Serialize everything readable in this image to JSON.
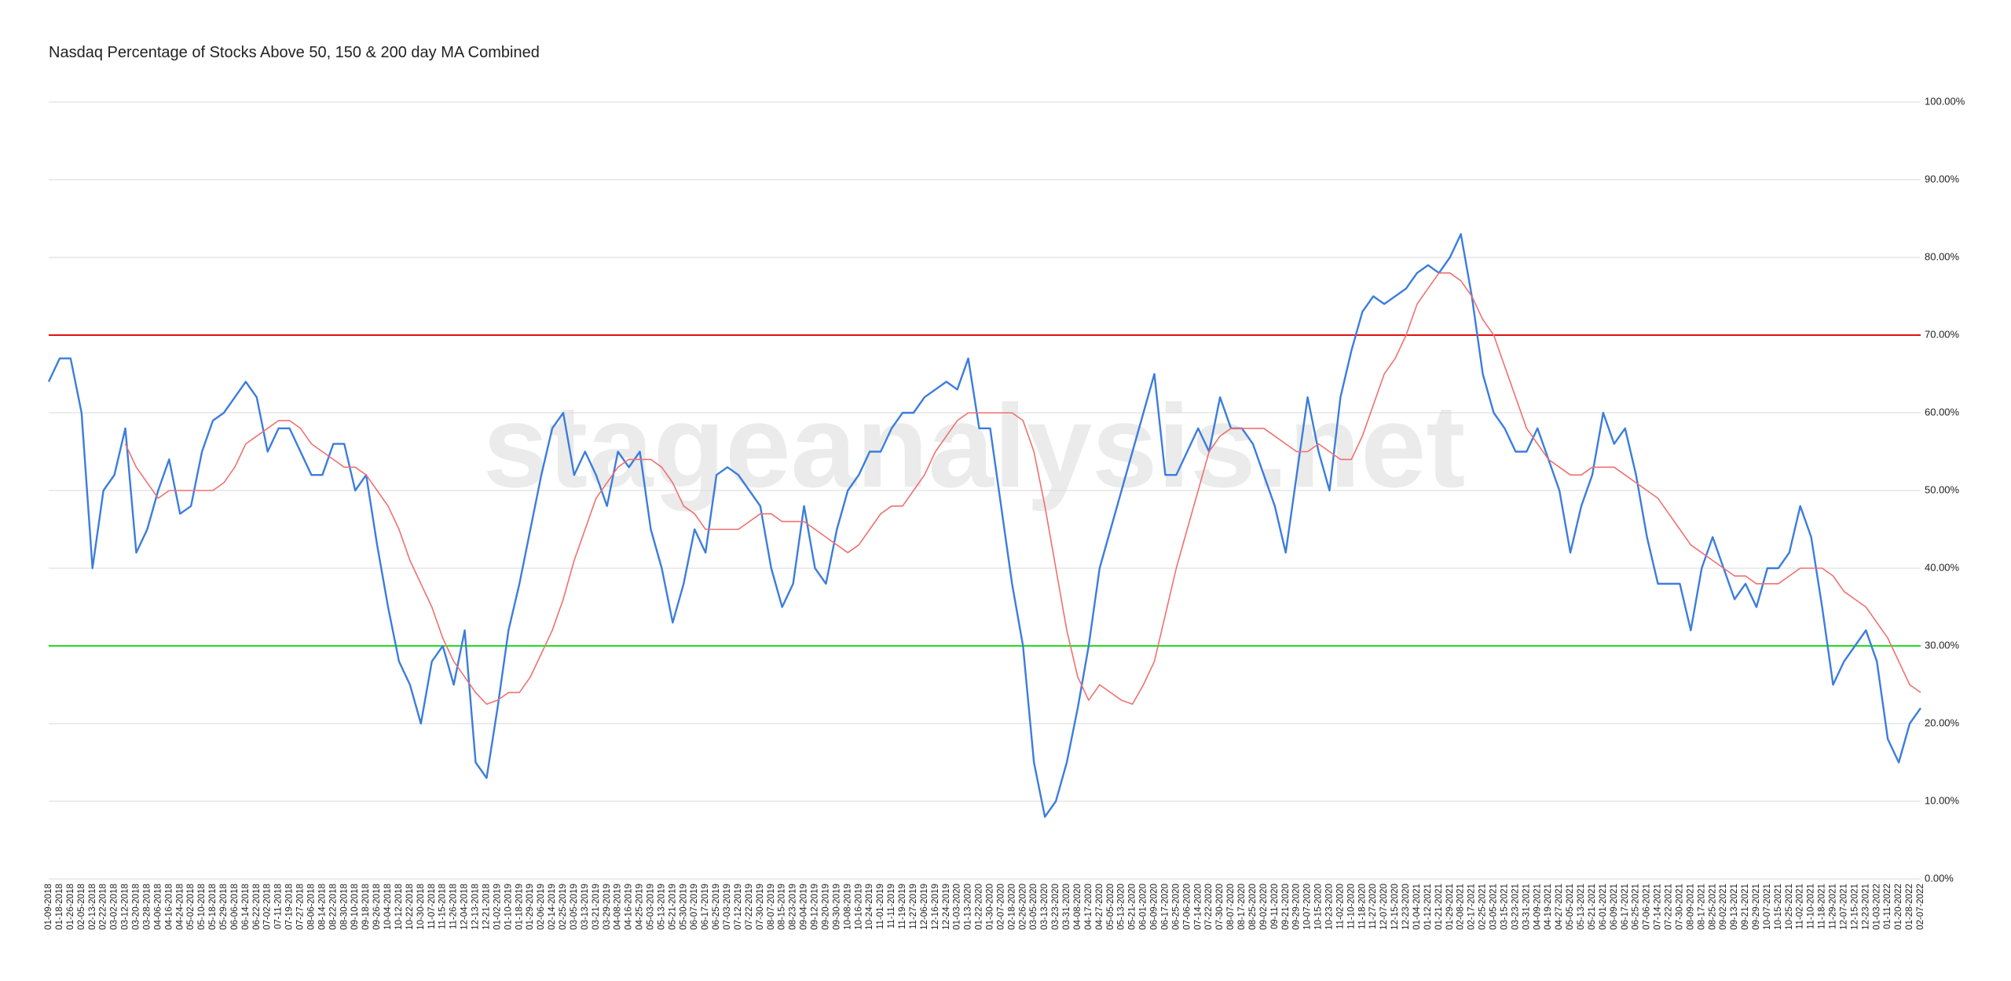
{
  "chart_data": {
    "type": "line",
    "title": "Nasdaq Percentage of Stocks Above 50, 150 & 200 day MA Combined",
    "watermark": "stageanalysis.net",
    "categories": [
      "01-09-2018",
      "01-18-2018",
      "01-26-2018",
      "02-05-2018",
      "02-13-2018",
      "02-22-2018",
      "03-02-2018",
      "03-12-2018",
      "03-20-2018",
      "03-28-2018",
      "04-06-2018",
      "04-16-2018",
      "04-24-2018",
      "05-02-2018",
      "05-10-2018",
      "05-18-2018",
      "05-29-2018",
      "06-06-2018",
      "06-14-2018",
      "06-22-2018",
      "07-02-2018",
      "07-11-2018",
      "07-19-2018",
      "07-27-2018",
      "08-06-2018",
      "08-14-2018",
      "08-22-2018",
      "08-30-2018",
      "09-10-2018",
      "09-18-2018",
      "09-26-2018",
      "10-04-2018",
      "10-12-2018",
      "10-22-2018",
      "10-30-2018",
      "11-07-2018",
      "11-15-2018",
      "11-26-2018",
      "12-04-2018",
      "12-13-2018",
      "12-21-2018",
      "01-02-2019",
      "01-10-2019",
      "01-18-2019",
      "01-29-2019",
      "02-06-2019",
      "02-14-2019",
      "02-25-2019",
      "03-05-2019",
      "03-13-2019",
      "03-21-2019",
      "03-29-2019",
      "04-08-2019",
      "04-16-2019",
      "04-25-2019",
      "05-03-2019",
      "05-13-2019",
      "05-21-2019",
      "05-30-2019",
      "06-07-2019",
      "06-17-2019",
      "06-25-2019",
      "07-03-2019",
      "07-12-2019",
      "07-22-2019",
      "07-30-2019",
      "08-07-2019",
      "08-15-2019",
      "08-23-2019",
      "09-04-2019",
      "09-12-2019",
      "09-20-2019",
      "09-30-2019",
      "10-08-2019",
      "10-16-2019",
      "10-24-2019",
      "11-01-2019",
      "11-11-2019",
      "11-19-2019",
      "11-27-2019",
      "12-06-2019",
      "12-16-2019",
      "12-24-2019",
      "01-03-2020",
      "01-13-2020",
      "01-22-2020",
      "01-30-2020",
      "02-07-2020",
      "02-18-2020",
      "02-26-2020",
      "03-05-2020",
      "03-13-2020",
      "03-23-2020",
      "03-31-2020",
      "04-08-2020",
      "04-17-2020",
      "04-27-2020",
      "05-05-2020",
      "05-13-2020",
      "05-21-2020",
      "06-01-2020",
      "06-09-2020",
      "06-17-2020",
      "06-25-2020",
      "07-06-2020",
      "07-14-2020",
      "07-22-2020",
      "07-30-2020",
      "08-07-2020",
      "08-17-2020",
      "08-25-2020",
      "09-02-2020",
      "09-11-2020",
      "09-21-2020",
      "09-29-2020",
      "10-07-2020",
      "10-15-2020",
      "10-23-2020",
      "11-02-2020",
      "11-10-2020",
      "11-18-2020",
      "11-27-2020",
      "12-07-2020",
      "12-15-2020",
      "12-23-2020",
      "01-04-2021",
      "01-12-2021",
      "01-21-2021",
      "01-29-2021",
      "02-08-2021",
      "02-17-2021",
      "02-25-2021",
      "03-05-2021",
      "03-15-2021",
      "03-23-2021",
      "03-31-2021",
      "04-09-2021",
      "04-19-2021",
      "04-27-2021",
      "05-05-2021",
      "05-13-2021",
      "05-21-2021",
      "06-01-2021",
      "06-09-2021",
      "06-17-2021",
      "06-25-2021",
      "07-06-2021",
      "07-14-2021",
      "07-22-2021",
      "07-30-2021",
      "08-09-2021",
      "08-17-2021",
      "08-25-2021",
      "09-02-2021",
      "09-13-2021",
      "09-21-2021",
      "09-29-2021",
      "10-07-2021",
      "10-15-2021",
      "10-25-2021",
      "11-02-2021",
      "11-10-2021",
      "11-18-2021",
      "11-29-2021",
      "12-07-2021",
      "12-15-2021",
      "12-23-2021",
      "01-03-2022",
      "01-11-2022",
      "01-20-2022",
      "01-28-2022",
      "02-07-2022"
    ],
    "series": [
      {
        "color": "#3b7ddd",
        "values": [
          64,
          67,
          67,
          60,
          40,
          50,
          52,
          58,
          42,
          45,
          50,
          54,
          47,
          48,
          55,
          59,
          60,
          62,
          64,
          62,
          55,
          58,
          58,
          55,
          52,
          52,
          56,
          56,
          50,
          52,
          43,
          35,
          28,
          25,
          20,
          28,
          30,
          25,
          32,
          15,
          13,
          22,
          32,
          38,
          45,
          52,
          58,
          60,
          52,
          55,
          52,
          48,
          55,
          53,
          55,
          45,
          40,
          33,
          38,
          45,
          42,
          52,
          53,
          52,
          50,
          48,
          40,
          35,
          38,
          48,
          40,
          38,
          45,
          50,
          52,
          55,
          55,
          58,
          60,
          60,
          62,
          63,
          64,
          63,
          67,
          58,
          58,
          48,
          38,
          30,
          15,
          8,
          10,
          15,
          22,
          30,
          40,
          45,
          50,
          55,
          60,
          65,
          52,
          52,
          55,
          58,
          55,
          62,
          58,
          58,
          56,
          52,
          48,
          42,
          52,
          62,
          55,
          50,
          62,
          68,
          73,
          75,
          74,
          75,
          76,
          78,
          79,
          78,
          80,
          83,
          75,
          65,
          60,
          58,
          55,
          55,
          58,
          54,
          50,
          42,
          48,
          52,
          60,
          56,
          58,
          52,
          44,
          38,
          38,
          38,
          32,
          40,
          44,
          40,
          36,
          38,
          35,
          40,
          40,
          42,
          48,
          44,
          35,
          25,
          28,
          30,
          32,
          28,
          18,
          15,
          20,
          22
        ]
      },
      {
        "color": "#f07070",
        "values": [
          null,
          null,
          null,
          null,
          null,
          null,
          null,
          56,
          53,
          51,
          49,
          50,
          50,
          50,
          50,
          50,
          51,
          53,
          56,
          57,
          58,
          59,
          59,
          58,
          56,
          55,
          54,
          53,
          53,
          52,
          50,
          48,
          45,
          41,
          38,
          35,
          31,
          28,
          26,
          24,
          22.5,
          23,
          24,
          24,
          26,
          29,
          32,
          36,
          41,
          45,
          49,
          51,
          53,
          54,
          54,
          54,
          53,
          51,
          48,
          47,
          45,
          45,
          45,
          45,
          46,
          47,
          47,
          46,
          46,
          46,
          45,
          44,
          43,
          42,
          43,
          45,
          47,
          48,
          48,
          50,
          52,
          55,
          57,
          59,
          60,
          60,
          60,
          60,
          60,
          59,
          55,
          48,
          40,
          32,
          26,
          23,
          25,
          24,
          23,
          22.5,
          25,
          28,
          34,
          40,
          45,
          50,
          55,
          57,
          58,
          58,
          58,
          58,
          57,
          56,
          55,
          55,
          56,
          55,
          54,
          54,
          57,
          61,
          65,
          67,
          70,
          74,
          76,
          78,
          78,
          77,
          75,
          72,
          70,
          66,
          62,
          58,
          56,
          54,
          53,
          52,
          52,
          53,
          53,
          53,
          52,
          51,
          50,
          49,
          47,
          45,
          43,
          42,
          41,
          40,
          39,
          39,
          38,
          38,
          38,
          39,
          40,
          40,
          40,
          39,
          37,
          36,
          35,
          33,
          31,
          28,
          25,
          24
        ]
      }
    ],
    "reference_lines": [
      {
        "value": 70,
        "color": "#e01010"
      },
      {
        "value": 30,
        "color": "#22dd22"
      }
    ],
    "ylim": [
      0,
      100
    ],
    "yticks": [
      {
        "value": 0,
        "label": "0.00%"
      },
      {
        "value": 10,
        "label": "10.00%"
      },
      {
        "value": 20,
        "label": "20.00%"
      },
      {
        "value": 30,
        "label": "30.00%"
      },
      {
        "value": 40,
        "label": "40.00%"
      },
      {
        "value": 50,
        "label": "50.00%"
      },
      {
        "value": 60,
        "label": "60.00%"
      },
      {
        "value": 70,
        "label": "70.00%"
      },
      {
        "value": 80,
        "label": "80.00%"
      },
      {
        "value": 90,
        "label": "90.00%"
      },
      {
        "value": 100,
        "label": "100.00%"
      }
    ],
    "grid": true
  }
}
